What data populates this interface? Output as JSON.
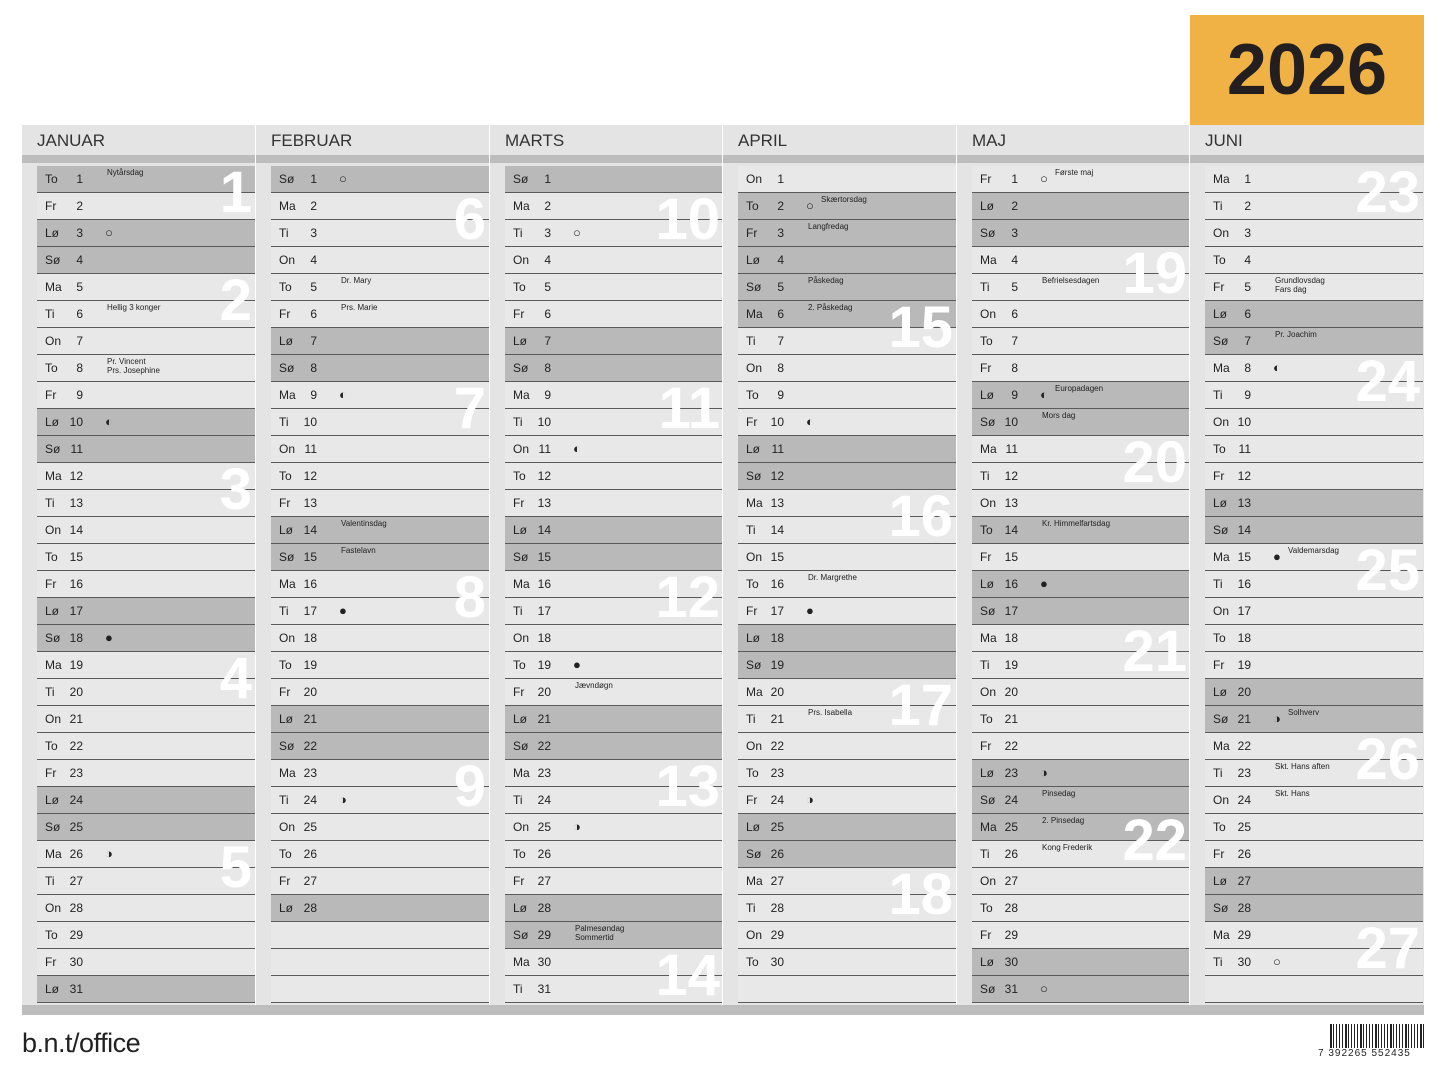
{
  "year": "2026",
  "brand": "b.n.t/office",
  "barcode": "7 392265 552435",
  "months": [
    {
      "name": "JANUAR",
      "days": [
        {
          "wd": "To",
          "d": 1,
          "notes": [
            "Nytårsdag"
          ],
          "week": 1,
          "shade": true
        },
        {
          "wd": "Fr",
          "d": 2
        },
        {
          "wd": "Lø",
          "d": 3,
          "moon": "○",
          "shade": true
        },
        {
          "wd": "Sø",
          "d": 4,
          "shade": true
        },
        {
          "wd": "Ma",
          "d": 5,
          "week": 2
        },
        {
          "wd": "Ti",
          "d": 6,
          "notes": [
            "Hellig 3 konger"
          ]
        },
        {
          "wd": "On",
          "d": 7
        },
        {
          "wd": "To",
          "d": 8,
          "notes": [
            "Pr. Vincent",
            "Prs. Josephine"
          ]
        },
        {
          "wd": "Fr",
          "d": 9
        },
        {
          "wd": "Lø",
          "d": 10,
          "moon": "◐",
          "shade": true
        },
        {
          "wd": "Sø",
          "d": 11,
          "shade": true
        },
        {
          "wd": "Ma",
          "d": 12,
          "week": 3
        },
        {
          "wd": "Ti",
          "d": 13
        },
        {
          "wd": "On",
          "d": 14
        },
        {
          "wd": "To",
          "d": 15
        },
        {
          "wd": "Fr",
          "d": 16
        },
        {
          "wd": "Lø",
          "d": 17,
          "shade": true
        },
        {
          "wd": "Sø",
          "d": 18,
          "moon": "●",
          "shade": true
        },
        {
          "wd": "Ma",
          "d": 19,
          "week": 4
        },
        {
          "wd": "Ti",
          "d": 20
        },
        {
          "wd": "On",
          "d": 21
        },
        {
          "wd": "To",
          "d": 22
        },
        {
          "wd": "Fr",
          "d": 23
        },
        {
          "wd": "Lø",
          "d": 24,
          "shade": true
        },
        {
          "wd": "Sø",
          "d": 25,
          "shade": true
        },
        {
          "wd": "Ma",
          "d": 26,
          "moon": "◑",
          "week": 5
        },
        {
          "wd": "Ti",
          "d": 27
        },
        {
          "wd": "On",
          "d": 28
        },
        {
          "wd": "To",
          "d": 29
        },
        {
          "wd": "Fr",
          "d": 30
        },
        {
          "wd": "Lø",
          "d": 31,
          "shade": true
        }
      ]
    },
    {
      "name": "FEBRUAR",
      "days": [
        {
          "wd": "Sø",
          "d": 1,
          "moon": "○",
          "shade": true
        },
        {
          "wd": "Ma",
          "d": 2,
          "week": 6
        },
        {
          "wd": "Ti",
          "d": 3
        },
        {
          "wd": "On",
          "d": 4
        },
        {
          "wd": "To",
          "d": 5,
          "notes": [
            "Dr. Mary"
          ]
        },
        {
          "wd": "Fr",
          "d": 6,
          "notes": [
            "Prs. Marie"
          ]
        },
        {
          "wd": "Lø",
          "d": 7,
          "shade": true
        },
        {
          "wd": "Sø",
          "d": 8,
          "shade": true
        },
        {
          "wd": "Ma",
          "d": 9,
          "moon": "◐",
          "week": 7
        },
        {
          "wd": "Ti",
          "d": 10
        },
        {
          "wd": "On",
          "d": 11
        },
        {
          "wd": "To",
          "d": 12
        },
        {
          "wd": "Fr",
          "d": 13
        },
        {
          "wd": "Lø",
          "d": 14,
          "notes": [
            "Valentinsdag"
          ],
          "shade": true
        },
        {
          "wd": "Sø",
          "d": 15,
          "notes": [
            "Fastelavn"
          ],
          "shade": true
        },
        {
          "wd": "Ma",
          "d": 16,
          "week": 8
        },
        {
          "wd": "Ti",
          "d": 17,
          "moon": "●"
        },
        {
          "wd": "On",
          "d": 18
        },
        {
          "wd": "To",
          "d": 19
        },
        {
          "wd": "Fr",
          "d": 20
        },
        {
          "wd": "Lø",
          "d": 21,
          "shade": true
        },
        {
          "wd": "Sø",
          "d": 22,
          "shade": true
        },
        {
          "wd": "Ma",
          "d": 23,
          "week": 9
        },
        {
          "wd": "Ti",
          "d": 24,
          "moon": "◑"
        },
        {
          "wd": "On",
          "d": 25
        },
        {
          "wd": "To",
          "d": 26
        },
        {
          "wd": "Fr",
          "d": 27
        },
        {
          "wd": "Lø",
          "d": 28,
          "shade": true
        }
      ]
    },
    {
      "name": "MARTS",
      "days": [
        {
          "wd": "Sø",
          "d": 1,
          "shade": true
        },
        {
          "wd": "Ma",
          "d": 2,
          "week": 10
        },
        {
          "wd": "Ti",
          "d": 3,
          "moon": "○"
        },
        {
          "wd": "On",
          "d": 4
        },
        {
          "wd": "To",
          "d": 5
        },
        {
          "wd": "Fr",
          "d": 6
        },
        {
          "wd": "Lø",
          "d": 7,
          "shade": true
        },
        {
          "wd": "Sø",
          "d": 8,
          "shade": true
        },
        {
          "wd": "Ma",
          "d": 9,
          "week": 11
        },
        {
          "wd": "Ti",
          "d": 10
        },
        {
          "wd": "On",
          "d": 11,
          "moon": "◐"
        },
        {
          "wd": "To",
          "d": 12
        },
        {
          "wd": "Fr",
          "d": 13
        },
        {
          "wd": "Lø",
          "d": 14,
          "shade": true
        },
        {
          "wd": "Sø",
          "d": 15,
          "shade": true
        },
        {
          "wd": "Ma",
          "d": 16,
          "week": 12
        },
        {
          "wd": "Ti",
          "d": 17
        },
        {
          "wd": "On",
          "d": 18
        },
        {
          "wd": "To",
          "d": 19,
          "moon": "●"
        },
        {
          "wd": "Fr",
          "d": 20,
          "notes": [
            "Jævndøgn"
          ]
        },
        {
          "wd": "Lø",
          "d": 21,
          "shade": true
        },
        {
          "wd": "Sø",
          "d": 22,
          "shade": true
        },
        {
          "wd": "Ma",
          "d": 23,
          "week": 13
        },
        {
          "wd": "Ti",
          "d": 24
        },
        {
          "wd": "On",
          "d": 25,
          "moon": "◑"
        },
        {
          "wd": "To",
          "d": 26
        },
        {
          "wd": "Fr",
          "d": 27
        },
        {
          "wd": "Lø",
          "d": 28,
          "shade": true
        },
        {
          "wd": "Sø",
          "d": 29,
          "notes": [
            "Palmesøndag",
            "Sommertid"
          ],
          "shade": true
        },
        {
          "wd": "Ma",
          "d": 30,
          "week": 14
        },
        {
          "wd": "Ti",
          "d": 31
        }
      ]
    },
    {
      "name": "APRIL",
      "days": [
        {
          "wd": "On",
          "d": 1
        },
        {
          "wd": "To",
          "d": 2,
          "moon": "○",
          "notes": [
            "Skærtorsdag"
          ],
          "shade": true
        },
        {
          "wd": "Fr",
          "d": 3,
          "notes": [
            "Langfredag"
          ],
          "shade": true
        },
        {
          "wd": "Lø",
          "d": 4,
          "shade": true
        },
        {
          "wd": "Sø",
          "d": 5,
          "notes": [
            "Påskedag"
          ],
          "shade": true
        },
        {
          "wd": "Ma",
          "d": 6,
          "notes": [
            "2. Påskedag"
          ],
          "week": 15,
          "shade": true
        },
        {
          "wd": "Ti",
          "d": 7
        },
        {
          "wd": "On",
          "d": 8
        },
        {
          "wd": "To",
          "d": 9
        },
        {
          "wd": "Fr",
          "d": 10,
          "moon": "◐"
        },
        {
          "wd": "Lø",
          "d": 11,
          "shade": true
        },
        {
          "wd": "Sø",
          "d": 12,
          "shade": true
        },
        {
          "wd": "Ma",
          "d": 13,
          "week": 16
        },
        {
          "wd": "Ti",
          "d": 14
        },
        {
          "wd": "On",
          "d": 15
        },
        {
          "wd": "To",
          "d": 16,
          "notes": [
            "Dr. Margrethe"
          ]
        },
        {
          "wd": "Fr",
          "d": 17,
          "moon": "●"
        },
        {
          "wd": "Lø",
          "d": 18,
          "shade": true
        },
        {
          "wd": "Sø",
          "d": 19,
          "shade": true
        },
        {
          "wd": "Ma",
          "d": 20,
          "week": 17
        },
        {
          "wd": "Ti",
          "d": 21,
          "notes": [
            "Prs. Isabella"
          ]
        },
        {
          "wd": "On",
          "d": 22
        },
        {
          "wd": "To",
          "d": 23
        },
        {
          "wd": "Fr",
          "d": 24,
          "moon": "◑"
        },
        {
          "wd": "Lø",
          "d": 25,
          "shade": true
        },
        {
          "wd": "Sø",
          "d": 26,
          "shade": true
        },
        {
          "wd": "Ma",
          "d": 27,
          "week": 18
        },
        {
          "wd": "Ti",
          "d": 28
        },
        {
          "wd": "On",
          "d": 29
        },
        {
          "wd": "To",
          "d": 30
        }
      ]
    },
    {
      "name": "MAJ",
      "days": [
        {
          "wd": "Fr",
          "d": 1,
          "moon": "○",
          "notes": [
            "Første maj"
          ]
        },
        {
          "wd": "Lø",
          "d": 2,
          "shade": true
        },
        {
          "wd": "Sø",
          "d": 3,
          "shade": true
        },
        {
          "wd": "Ma",
          "d": 4,
          "week": 19
        },
        {
          "wd": "Ti",
          "d": 5,
          "notes": [
            "Befrielsesdagen"
          ]
        },
        {
          "wd": "On",
          "d": 6
        },
        {
          "wd": "To",
          "d": 7
        },
        {
          "wd": "Fr",
          "d": 8
        },
        {
          "wd": "Lø",
          "d": 9,
          "moon": "◐",
          "notes": [
            "Europadagen"
          ],
          "shade": true
        },
        {
          "wd": "Sø",
          "d": 10,
          "notes": [
            "Mors dag"
          ],
          "shade": true
        },
        {
          "wd": "Ma",
          "d": 11,
          "week": 20
        },
        {
          "wd": "Ti",
          "d": 12
        },
        {
          "wd": "On",
          "d": 13
        },
        {
          "wd": "To",
          "d": 14,
          "notes": [
            "Kr. Himmelfartsdag"
          ],
          "shade": true
        },
        {
          "wd": "Fr",
          "d": 15
        },
        {
          "wd": "Lø",
          "d": 16,
          "moon": "●",
          "shade": true
        },
        {
          "wd": "Sø",
          "d": 17,
          "shade": true
        },
        {
          "wd": "Ma",
          "d": 18,
          "week": 21
        },
        {
          "wd": "Ti",
          "d": 19
        },
        {
          "wd": "On",
          "d": 20
        },
        {
          "wd": "To",
          "d": 21
        },
        {
          "wd": "Fr",
          "d": 22
        },
        {
          "wd": "Lø",
          "d": 23,
          "moon": "◑",
          "shade": true
        },
        {
          "wd": "Sø",
          "d": 24,
          "notes": [
            "Pinsedag"
          ],
          "shade": true
        },
        {
          "wd": "Ma",
          "d": 25,
          "notes": [
            "2. Pinsedag"
          ],
          "week": 22,
          "shade": true
        },
        {
          "wd": "Ti",
          "d": 26,
          "notes": [
            "Kong Frederik"
          ]
        },
        {
          "wd": "On",
          "d": 27
        },
        {
          "wd": "To",
          "d": 28
        },
        {
          "wd": "Fr",
          "d": 29
        },
        {
          "wd": "Lø",
          "d": 30,
          "shade": true
        },
        {
          "wd": "Sø",
          "d": 31,
          "moon": "○",
          "shade": true
        }
      ]
    },
    {
      "name": "JUNI",
      "days": [
        {
          "wd": "Ma",
          "d": 1,
          "week": 23
        },
        {
          "wd": "Ti",
          "d": 2
        },
        {
          "wd": "On",
          "d": 3
        },
        {
          "wd": "To",
          "d": 4
        },
        {
          "wd": "Fr",
          "d": 5,
          "notes": [
            "Grundlovsdag",
            "Fars dag"
          ]
        },
        {
          "wd": "Lø",
          "d": 6,
          "shade": true
        },
        {
          "wd": "Sø",
          "d": 7,
          "notes": [
            "Pr. Joachim"
          ],
          "shade": true
        },
        {
          "wd": "Ma",
          "d": 8,
          "moon": "◐",
          "week": 24
        },
        {
          "wd": "Ti",
          "d": 9
        },
        {
          "wd": "On",
          "d": 10
        },
        {
          "wd": "To",
          "d": 11
        },
        {
          "wd": "Fr",
          "d": 12
        },
        {
          "wd": "Lø",
          "d": 13,
          "shade": true
        },
        {
          "wd": "Sø",
          "d": 14,
          "shade": true
        },
        {
          "wd": "Ma",
          "d": 15,
          "moon": "●",
          "notes": [
            "Valdemarsdag"
          ],
          "week": 25
        },
        {
          "wd": "Ti",
          "d": 16
        },
        {
          "wd": "On",
          "d": 17
        },
        {
          "wd": "To",
          "d": 18
        },
        {
          "wd": "Fr",
          "d": 19
        },
        {
          "wd": "Lø",
          "d": 20,
          "shade": true
        },
        {
          "wd": "Sø",
          "d": 21,
          "moon": "◑",
          "notes": [
            "Solhverv"
          ],
          "shade": true
        },
        {
          "wd": "Ma",
          "d": 22,
          "week": 26
        },
        {
          "wd": "Ti",
          "d": 23,
          "notes": [
            "Skt. Hans aften"
          ]
        },
        {
          "wd": "On",
          "d": 24,
          "notes": [
            "Skt. Hans"
          ]
        },
        {
          "wd": "To",
          "d": 25
        },
        {
          "wd": "Fr",
          "d": 26
        },
        {
          "wd": "Lø",
          "d": 27,
          "shade": true
        },
        {
          "wd": "Sø",
          "d": 28,
          "shade": true
        },
        {
          "wd": "Ma",
          "d": 29,
          "week": 27
        },
        {
          "wd": "Ti",
          "d": 30,
          "moon": "○"
        }
      ]
    }
  ]
}
